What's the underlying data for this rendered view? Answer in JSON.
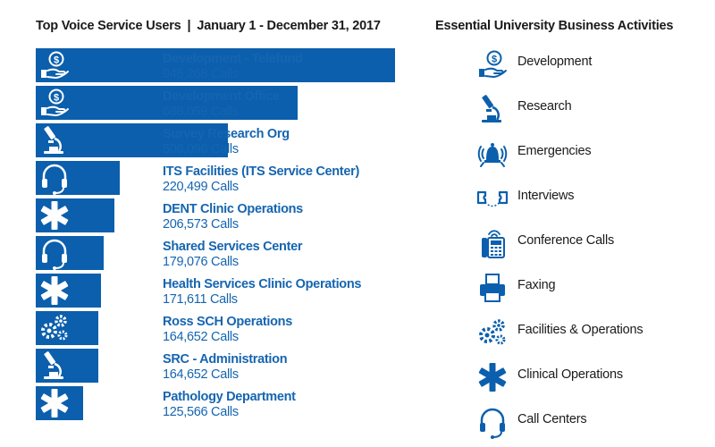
{
  "chart_title": {
    "left": "Top Voice Service Users",
    "separator": "|",
    "right": "January 1 - December 31, 2017"
  },
  "legend_title": "Essential University Business Activities",
  "colors": {
    "bar": "#0b5fad",
    "label": "#1565b0",
    "icon": "#0b5fad",
    "text": "#1a1a1a"
  },
  "chart_data": {
    "type": "bar",
    "orientation": "horizontal",
    "title": "Top Voice Service Users | January 1 - December 31, 2017",
    "value_suffix": "Calls",
    "categories": [
      "Development - Telefund",
      "Development Office",
      "Survey Research Org",
      "ITS Facilities (ITS Service Center)",
      "DENT Clinic Operations",
      "Shared Services Center",
      "Health Services Clinic Operations",
      "Ross SCH Operations",
      "SRC - Administration",
      "Pathology Department"
    ],
    "values": [
      945268,
      688059,
      506096,
      220499,
      206573,
      179076,
      171611,
      164652,
      164652,
      125566
    ],
    "value_labels": [
      "945,268 Calls",
      "688,059 Calls",
      "506,096 Calls",
      "220,499 Calls",
      "206,573 Calls",
      "179,076 Calls",
      "171,611 Calls",
      "164,652 Calls",
      "164,652 Calls",
      "125,566 Calls"
    ],
    "bar_icons": [
      "development-icon",
      "development-icon",
      "research-icon",
      "call-centers-icon",
      "clinical-operations-icon",
      "call-centers-icon",
      "clinical-operations-icon",
      "facilities-operations-icon",
      "research-icon",
      "clinical-operations-icon"
    ]
  },
  "legend": [
    {
      "label": "Development",
      "icon": "development-icon"
    },
    {
      "label": "Research",
      "icon": "research-icon"
    },
    {
      "label": "Emergencies",
      "icon": "emergencies-icon"
    },
    {
      "label": "Interviews",
      "icon": "interviews-icon"
    },
    {
      "label": "Conference Calls",
      "icon": "conference-calls-icon"
    },
    {
      "label": "Faxing",
      "icon": "faxing-icon"
    },
    {
      "label": "Facilities & Operations",
      "icon": "facilities-operations-icon"
    },
    {
      "label": "Clinical Operations",
      "icon": "clinical-operations-icon"
    },
    {
      "label": "Call Centers",
      "icon": "call-centers-icon"
    }
  ]
}
